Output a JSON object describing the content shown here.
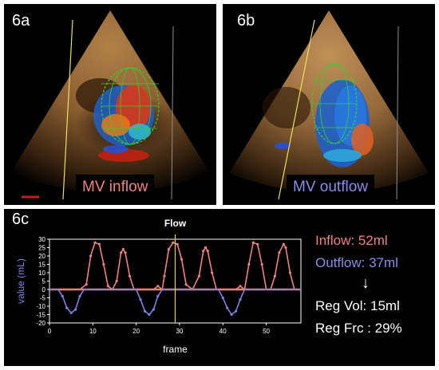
{
  "panel_a": {
    "label": "6a",
    "caption": "MV inflow"
  },
  "panel_b": {
    "label": "6b",
    "caption": "MV outflow"
  },
  "panel_c": {
    "label": "6c"
  },
  "stats": {
    "inflow": "Inflow: 52ml",
    "outflow": "Outflow: 37ml",
    "arrow": "↓",
    "reg_vol": "Reg Vol: 15ml",
    "reg_frc": "Reg Frc : 29%"
  },
  "colors": {
    "inflow": "#f08080",
    "outflow": "#8080e0",
    "marker": "#e8d040"
  },
  "chart_data": {
    "type": "line",
    "title": "Flow",
    "xlabel": "frame",
    "ylabel": "value (mL)",
    "xlim": [
      0,
      58
    ],
    "ylim": [
      -20,
      30
    ],
    "xticks": [
      0,
      10,
      20,
      30,
      40,
      50
    ],
    "yticks": [
      -20,
      -15,
      -10,
      -5,
      0,
      5,
      10,
      15,
      20,
      25,
      30
    ],
    "marker_x": 29,
    "series": [
      {
        "color": "#f08080",
        "points": [
          [
            0,
            0
          ],
          [
            7,
            0
          ],
          [
            8.5,
            3
          ],
          [
            9.5,
            20
          ],
          [
            10.5,
            28
          ],
          [
            11.5,
            27
          ],
          [
            12.5,
            15
          ],
          [
            13.5,
            2
          ],
          [
            14.5,
            0
          ],
          [
            15.5,
            5
          ],
          [
            16.5,
            22
          ],
          [
            17,
            24
          ],
          [
            17.5,
            22
          ],
          [
            18.5,
            8
          ],
          [
            19.5,
            0
          ],
          [
            24,
            0
          ],
          [
            25,
            2
          ],
          [
            26,
            0
          ],
          [
            26.5,
            8
          ],
          [
            27.5,
            24
          ],
          [
            28.5,
            28
          ],
          [
            29.5,
            27
          ],
          [
            30.5,
            18
          ],
          [
            31.5,
            3
          ],
          [
            33,
            0
          ],
          [
            34.5,
            8
          ],
          [
            35.5,
            23
          ],
          [
            36,
            25
          ],
          [
            36.5,
            23
          ],
          [
            37.5,
            10
          ],
          [
            38.5,
            0
          ],
          [
            43,
            0
          ],
          [
            44,
            2
          ],
          [
            45,
            0
          ],
          [
            46,
            15
          ],
          [
            47,
            28
          ],
          [
            48,
            27
          ],
          [
            49,
            15
          ],
          [
            50,
            0
          ],
          [
            51,
            0
          ],
          [
            52,
            8
          ],
          [
            53,
            22
          ],
          [
            54,
            27
          ],
          [
            54.5,
            25
          ],
          [
            55.5,
            10
          ],
          [
            56.5,
            0
          ],
          [
            58,
            0
          ]
        ]
      },
      {
        "color": "#8080e0",
        "points": [
          [
            0,
            0
          ],
          [
            2,
            0
          ],
          [
            3,
            -4
          ],
          [
            4,
            -11
          ],
          [
            5,
            -14
          ],
          [
            6,
            -12
          ],
          [
            7,
            -4
          ],
          [
            8,
            0
          ],
          [
            20,
            0
          ],
          [
            21,
            -6
          ],
          [
            22,
            -13
          ],
          [
            23,
            -15
          ],
          [
            24,
            -12
          ],
          [
            25,
            -4
          ],
          [
            26,
            0
          ],
          [
            39,
            0
          ],
          [
            40,
            -5
          ],
          [
            41,
            -11
          ],
          [
            42,
            -15
          ],
          [
            43,
            -13
          ],
          [
            44,
            -6
          ],
          [
            45,
            0
          ],
          [
            58,
            0
          ]
        ]
      }
    ]
  }
}
